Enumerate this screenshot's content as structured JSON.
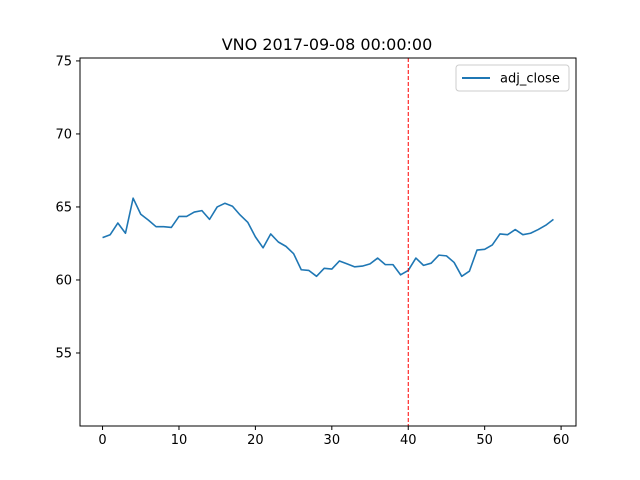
{
  "chart_data": {
    "type": "line",
    "title": "VNO 2017-09-08 00:00:00",
    "xlabel": "",
    "ylabel": "",
    "xlim": [
      -2.95,
      61.95
    ],
    "ylim": [
      50.0,
      75.2
    ],
    "xticks": [
      0,
      10,
      20,
      30,
      40,
      50,
      60
    ],
    "yticks": [
      55,
      60,
      65,
      70,
      75
    ],
    "grid": false,
    "legend_position": "top-right",
    "series": [
      {
        "name": "adj_close",
        "color": "#1f77b4",
        "x": [
          0,
          1,
          2,
          3,
          4,
          5,
          6,
          7,
          8,
          9,
          10,
          11,
          12,
          13,
          14,
          15,
          16,
          17,
          18,
          19,
          20,
          21,
          22,
          23,
          24,
          25,
          26,
          27,
          28,
          29,
          30,
          31,
          32,
          33,
          34,
          35,
          36,
          37,
          38,
          39,
          40,
          41,
          42,
          43,
          44,
          45,
          46,
          47,
          48,
          49,
          50,
          51,
          52,
          53,
          54,
          55,
          56,
          57,
          58,
          59
        ],
        "values": [
          62.9,
          63.1,
          63.9,
          63.2,
          65.6,
          64.5,
          64.1,
          63.65,
          63.65,
          63.6,
          64.35,
          64.35,
          64.65,
          64.75,
          64.15,
          65.0,
          65.25,
          65.05,
          64.45,
          63.95,
          62.95,
          62.2,
          63.15,
          62.6,
          62.3,
          61.8,
          60.7,
          60.65,
          60.25,
          60.8,
          60.75,
          61.3,
          61.1,
          60.9,
          60.95,
          61.1,
          61.5,
          61.05,
          61.05,
          60.35,
          60.65,
          61.5,
          61.0,
          61.15,
          61.7,
          61.65,
          61.2,
          60.25,
          60.6,
          62.05,
          62.1,
          62.4,
          63.15,
          63.1,
          63.45,
          63.1,
          63.2,
          63.45,
          63.75,
          64.15
        ]
      }
    ],
    "annotations": [
      {
        "type": "vline",
        "x": 40,
        "color": "#ff0000",
        "style": "dashed"
      }
    ]
  }
}
